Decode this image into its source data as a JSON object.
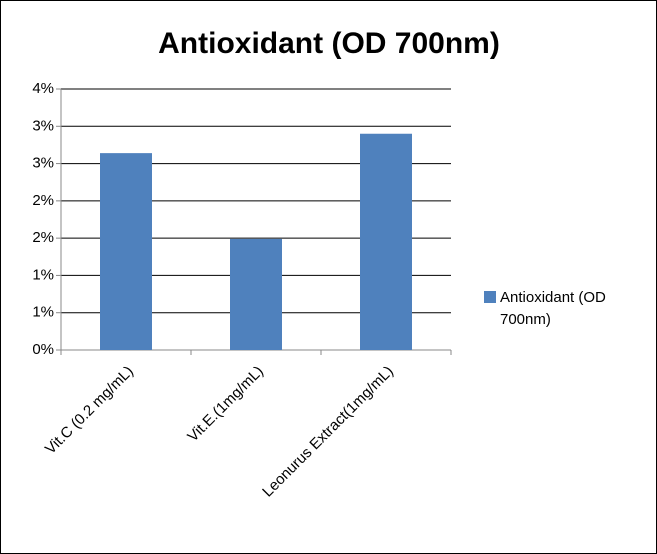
{
  "chart_data": {
    "type": "bar",
    "title": "Antioxidant (OD 700nm)",
    "categories": [
      "Vit.C (0.2 mg/mL)",
      "Vit.E.(1mg/mL)",
      "Leonurus Extract(1mg/mL)"
    ],
    "series": [
      {
        "name": "Antioxidant (OD 700nm)",
        "color": "#4f81bd",
        "values": [
          2.64,
          1.49,
          2.9
        ]
      }
    ],
    "ylim": [
      0,
      3.5
    ],
    "yticks": [
      {
        "value": 0,
        "label": "0%"
      },
      {
        "value": 0.5,
        "label": "1%"
      },
      {
        "value": 1,
        "label": "1%"
      },
      {
        "value": 1.5,
        "label": "2%"
      },
      {
        "value": 2,
        "label": "2%"
      },
      {
        "value": 2.5,
        "label": "3%"
      },
      {
        "value": 3,
        "label": "3%"
      },
      {
        "value": 3.5,
        "label": "4%"
      }
    ],
    "grid": true,
    "legend": "right"
  }
}
